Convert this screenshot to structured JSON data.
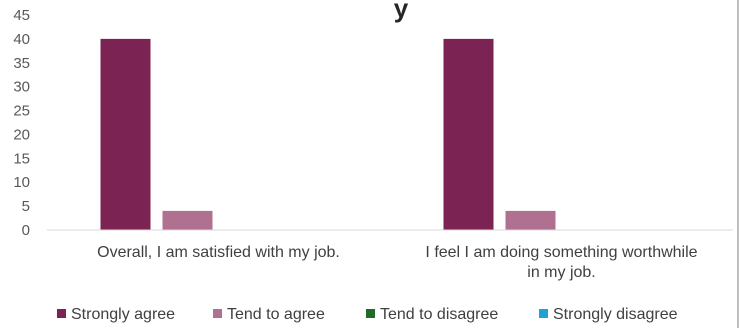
{
  "chart_data": {
    "type": "bar",
    "title_visible_fragment": "y",
    "categories": [
      [
        "Overall, I am satisfied with my job."
      ],
      [
        "I feel I am doing something worthwhile",
        "in my job."
      ]
    ],
    "series": [
      {
        "name": "Strongly agree",
        "color": "#7b2352",
        "values": [
          40,
          40
        ]
      },
      {
        "name": "Tend to agree",
        "color": "#b0708f",
        "values": [
          4,
          4
        ]
      },
      {
        "name": "Tend to disagree",
        "color": "#1e6b2a",
        "values": [
          0,
          0
        ]
      },
      {
        "name": "Strongly disagree",
        "color": "#1fa0d8",
        "values": [
          0,
          0
        ]
      }
    ],
    "ylim": [
      0,
      45
    ],
    "yticks": [
      0,
      5,
      10,
      15,
      20,
      25,
      30,
      35,
      40,
      45
    ],
    "xlabel": "",
    "ylabel": "",
    "grid": false,
    "legend_position": "bottom"
  }
}
